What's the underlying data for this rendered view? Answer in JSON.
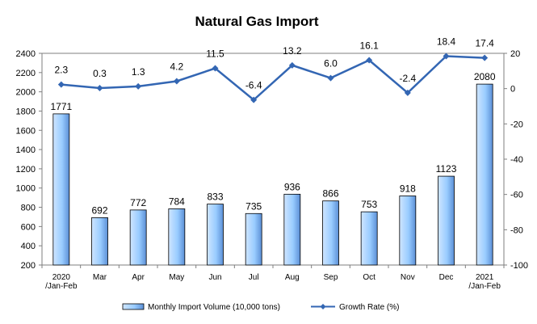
{
  "chart_data": {
    "type": "bar",
    "title": "Natural Gas Import",
    "categories": [
      [
        "2020",
        "/Jan-Feb"
      ],
      [
        "Mar"
      ],
      [
        "Apr"
      ],
      [
        "May"
      ],
      [
        "Jun"
      ],
      [
        "Jul"
      ],
      [
        "Aug"
      ],
      [
        "Sep"
      ],
      [
        "Oct"
      ],
      [
        "Nov"
      ],
      [
        "Dec"
      ],
      [
        "2021",
        "/Jan-Feb"
      ]
    ],
    "series": [
      {
        "name": "Monthly Import Volume (10,000 tons)",
        "type": "bar",
        "axis": "left",
        "values": [
          1771,
          692,
          772,
          784,
          833,
          735,
          936,
          866,
          753,
          918,
          1123,
          2080
        ],
        "color": "#99ccff",
        "gradient_end": "#5b8fd6"
      },
      {
        "name": "Growth Rate (%)",
        "type": "line",
        "axis": "right",
        "values": [
          2.3,
          0.3,
          1.3,
          4.2,
          11.5,
          -6.4,
          13.2,
          6.0,
          16.1,
          -2.4,
          18.4,
          17.4
        ],
        "labels": [
          "2.3",
          "0.3",
          "1.3",
          "4.2",
          "11.5",
          "-6.4",
          "13.2",
          "6.0",
          "16.1",
          "-2.4",
          "18.4",
          "17.4"
        ],
        "color": "#3366b3",
        "marker": "diamond"
      }
    ],
    "ylim_left": [
      200,
      2400
    ],
    "yticks_left": [
      200,
      400,
      600,
      800,
      1000,
      1200,
      1400,
      1600,
      1800,
      2000,
      2200,
      2400
    ],
    "ylim_right": [
      -100,
      20
    ],
    "yticks_right": [
      20,
      0,
      -20,
      -40,
      -60,
      -80,
      -100
    ],
    "grid": false,
    "legend_position": "bottom"
  }
}
